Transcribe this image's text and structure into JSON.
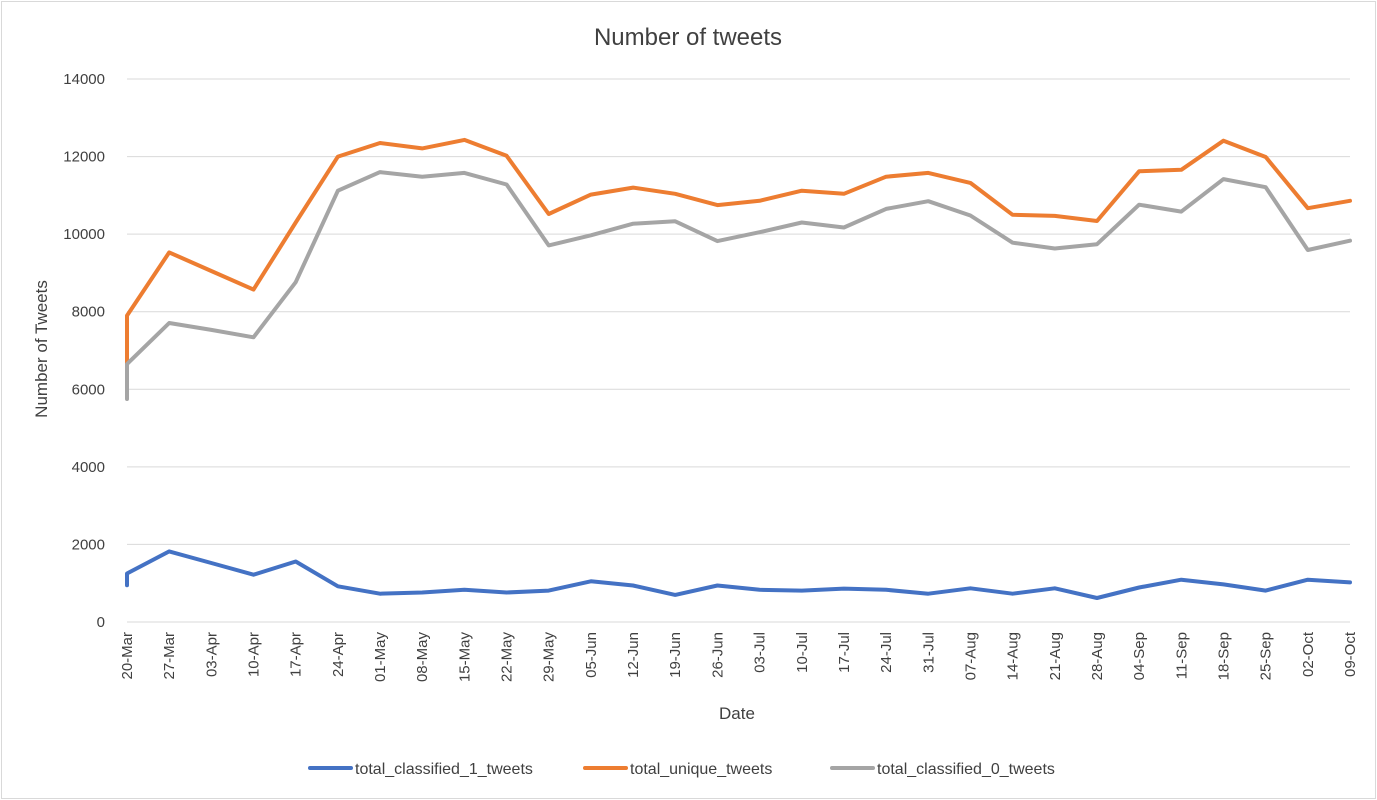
{
  "chart_data": {
    "type": "line",
    "title": "Number of tweets",
    "xlabel": "Date",
    "ylabel": "Number of Tweets",
    "ylim": [
      0,
      14000
    ],
    "yticks": [
      0,
      2000,
      4000,
      6000,
      8000,
      10000,
      12000,
      14000
    ],
    "grid": true,
    "legend_position": "bottom",
    "categories": [
      "20-Mar",
      "27-Mar",
      "03-Apr",
      "10-Apr",
      "17-Apr",
      "24-Apr",
      "01-May",
      "08-May",
      "15-May",
      "22-May",
      "29-May",
      "05-Jun",
      "12-Jun",
      "19-Jun",
      "26-Jun",
      "03-Jul",
      "10-Jul",
      "17-Jul",
      "24-Jul",
      "31-Jul",
      "07-Aug",
      "14-Aug",
      "21-Aug",
      "28-Aug",
      "04-Sep",
      "11-Sep",
      "18-Sep",
      "25-Sep",
      "02-Oct",
      "09-Oct"
    ],
    "start_segment": {
      "total_classified_1_tweets": [
        950,
        1250
      ],
      "total_unique_tweets": [
        6600,
        7900
      ],
      "total_classified_0_tweets": [
        5750,
        6650
      ]
    },
    "series": [
      {
        "name": "total_classified_1_tweets",
        "color": "#4472C4",
        "values": [
          1250,
          1820,
          1520,
          1220,
          1560,
          920,
          730,
          760,
          830,
          760,
          810,
          1050,
          940,
          700,
          940,
          830,
          810,
          860,
          830,
          730,
          870,
          730,
          870,
          620,
          890,
          1090,
          970,
          810,
          1090,
          1020
        ]
      },
      {
        "name": "total_unique_tweets",
        "color": "#ED7D31",
        "values": [
          7900,
          9530,
          9050,
          8570,
          10300,
          12000,
          12350,
          12210,
          12430,
          12020,
          10520,
          11020,
          11200,
          11040,
          10750,
          10860,
          11120,
          11040,
          11480,
          11580,
          11320,
          10500,
          10470,
          10340,
          11620,
          11660,
          12410,
          11990,
          10670,
          10860
        ]
      },
      {
        "name": "total_classified_0_tweets",
        "color": "#A5A5A5",
        "values": [
          6650,
          7710,
          7530,
          7340,
          8760,
          11120,
          11600,
          11480,
          11580,
          11280,
          9710,
          9970,
          10270,
          10330,
          9820,
          10050,
          10300,
          10170,
          10650,
          10850,
          10480,
          9780,
          9630,
          9740,
          10760,
          10580,
          11420,
          11210,
          9590,
          9830
        ]
      }
    ]
  }
}
